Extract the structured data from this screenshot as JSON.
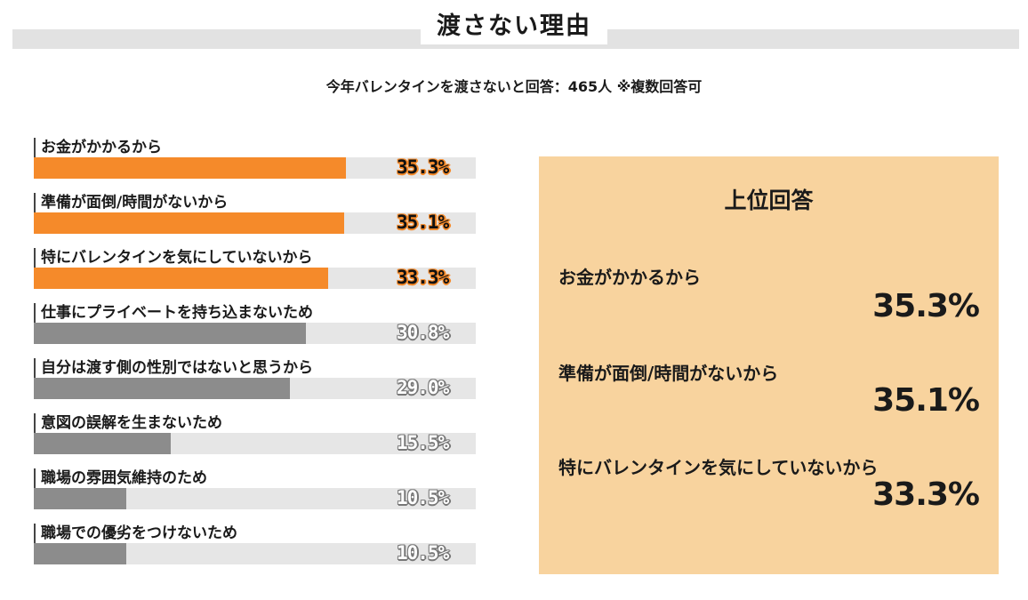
{
  "title": "渡さない理由",
  "subtitle": "今年バレンタインを渡さないと回答：465人 ※複数回答可",
  "colors": {
    "highlight": "#f58a2a",
    "normal": "#8c8c8c",
    "track": "#e6e6e6",
    "panel": "#f8d39e"
  },
  "chart_data": {
    "type": "bar",
    "orientation": "horizontal",
    "xlim": [
      0,
      50
    ],
    "categories": [
      "お金がかかるから",
      "準備が面倒/時間がないから",
      "特にバレンタインを気にしていないから",
      "仕事にプライベートを持ち込まないため",
      "自分は渡す側の性別ではないと思うから",
      "意図の誤解を生まないため",
      "職場の雰囲気維持のため",
      "職場での優劣をつけないため"
    ],
    "values": [
      35.3,
      35.1,
      33.3,
      30.8,
      29.0,
      15.5,
      10.5,
      10.5
    ],
    "value_labels": [
      "35.3%",
      "35.1%",
      "33.3%",
      "30.8%",
      "29.0%",
      "15.5%",
      "10.5%",
      "10.5%"
    ],
    "highlight_top_n": 3
  },
  "panel": {
    "title": "上位回答",
    "items": [
      {
        "label": "お金がかかるから",
        "value": "35.3%"
      },
      {
        "label": "準備が面倒/時間がないから",
        "value": "35.1%"
      },
      {
        "label": "特にバレンタインを気にしていないから",
        "value": "33.3%"
      }
    ]
  }
}
